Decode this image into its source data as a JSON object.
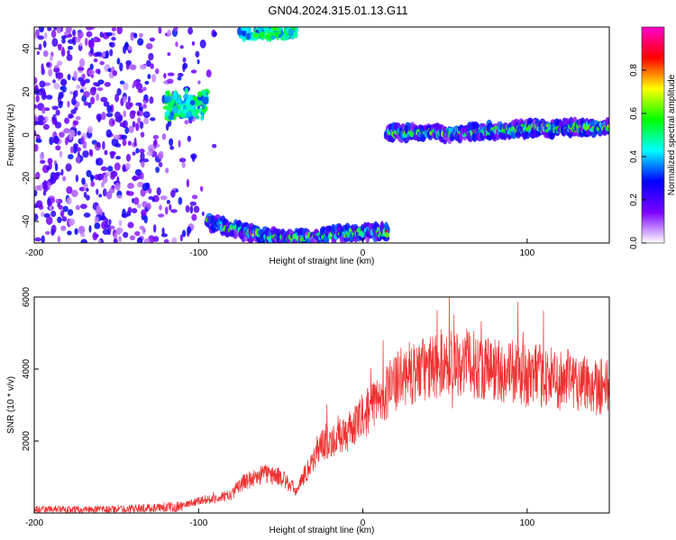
{
  "figure": {
    "title": "GN04.2024.315.01.13.G11"
  },
  "chart_data": [
    {
      "type": "heatmap",
      "xlabel": "Height of straight line (km)",
      "ylabel": "Frequency (Hz)",
      "xlim": [
        -200,
        150
      ],
      "ylim": [
        -50,
        50
      ],
      "xticks": [
        -200,
        -100,
        0,
        100
      ],
      "yticks": [
        -40,
        -20,
        0,
        20,
        40
      ],
      "colorbar": {
        "label": "Normalized spectral amplitude",
        "range": [
          0,
          1
        ],
        "ticks": [
          0.0,
          0.2,
          0.4,
          0.6,
          0.8
        ],
        "tick_labels": [
          "0.0",
          "0.2",
          "0.4",
          "0.6",
          "0.8"
        ],
        "colormap": [
          "#ffffff",
          "#7b00ff",
          "#0000ff",
          "#00ffff",
          "#00ff00",
          "#ffff00",
          "#ff0000",
          "#ff00cc"
        ]
      },
      "regions": [
        {
          "name": "noise",
          "x": [
            -200,
            -90
          ],
          "y": [
            -50,
            50
          ],
          "amplitude": [
            0.05,
            0.3
          ]
        },
        {
          "name": "upper-band",
          "x": [
            -120,
            -95
          ],
          "y": [
            8,
            20
          ],
          "amplitude": [
            0.3,
            0.6
          ]
        },
        {
          "name": "top-band",
          "x": [
            -75,
            -40
          ],
          "y": [
            45,
            50
          ],
          "amplitude": [
            0.3,
            0.6
          ]
        },
        {
          "name": "signal",
          "points": [
            [
              -95,
              -40
            ],
            [
              -80,
              -43
            ],
            [
              -60,
              -47
            ],
            [
              -40,
              -48
            ],
            [
              -20,
              -46
            ],
            [
              0,
              -45
            ],
            [
              15,
              -45
            ]
          ],
          "amplitude": [
            0.5,
            0.95
          ]
        },
        {
          "name": "signal",
          "points": [
            [
              15,
              1
            ],
            [
              40,
              1
            ],
            [
              60,
              1
            ],
            [
              80,
              2
            ],
            [
              100,
              3
            ],
            [
              120,
              3
            ],
            [
              150,
              4
            ]
          ],
          "amplitude": [
            0.6,
            0.95
          ]
        }
      ]
    },
    {
      "type": "line",
      "xlabel": "Height of straight line (km)",
      "ylabel": "SNR (10 * v/v)",
      "xlim": [
        -200,
        150
      ],
      "ylim": [
        0,
        6000
      ],
      "xticks": [
        -200,
        -100,
        0,
        100
      ],
      "yticks": [
        2000,
        4000,
        6000
      ],
      "color": "#ef3030",
      "series": [
        {
          "x": [
            -200,
            -180,
            -160,
            -140,
            -120,
            -110,
            -100,
            -90,
            -80,
            -75,
            -70,
            -60,
            -50,
            -40,
            -35,
            -30,
            -25,
            -20,
            -15,
            -10,
            -5,
            0,
            5,
            10,
            15,
            20,
            25,
            30,
            40,
            50,
            60,
            70,
            80,
            90,
            100,
            110,
            120,
            130,
            140,
            150
          ],
          "values": [
            100,
            100,
            100,
            120,
            150,
            200,
            350,
            400,
            500,
            800,
            900,
            1100,
            1000,
            600,
            1100,
            1500,
            1900,
            2000,
            2100,
            2200,
            2400,
            2700,
            2900,
            3200,
            3400,
            3600,
            3800,
            3900,
            4000,
            4200,
            4200,
            4100,
            4000,
            3900,
            3800,
            3800,
            3700,
            3700,
            3600,
            3500
          ]
        }
      ]
    }
  ]
}
